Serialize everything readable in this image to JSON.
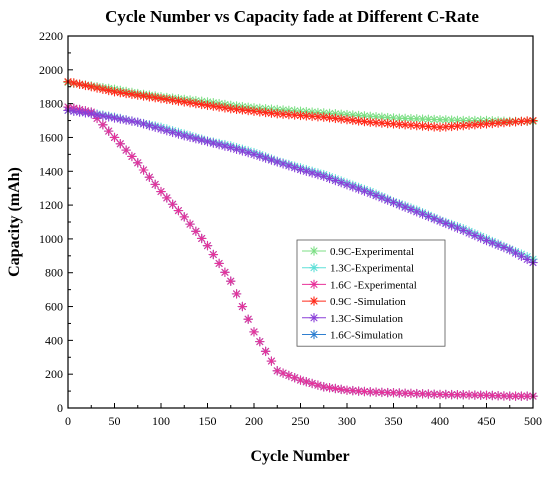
{
  "chart_data": {
    "type": "scatter",
    "title": "Cycle Number vs Capacity fade at Different C-Rate",
    "xlabel": "Cycle Number",
    "ylabel": "Capacity (mAh)",
    "xlim": [
      0,
      500
    ],
    "ylim": [
      0,
      2200
    ],
    "x_ticks": [
      0,
      50,
      100,
      150,
      200,
      250,
      300,
      350,
      400,
      450,
      500
    ],
    "y_ticks": [
      0,
      200,
      400,
      600,
      800,
      1000,
      1200,
      1400,
      1600,
      1800,
      2000,
      2200
    ],
    "marker": "asterisk",
    "grid": false,
    "legend_position": "center-right",
    "x": [
      0,
      25,
      50,
      75,
      100,
      125,
      150,
      175,
      200,
      225,
      250,
      275,
      300,
      325,
      350,
      375,
      400,
      425,
      450,
      475,
      500
    ],
    "series": [
      {
        "name": "0.9C-Experimental",
        "color": "#7ddf86",
        "plot_order": 2,
        "values": [
          1925,
          1905,
          1885,
          1860,
          1840,
          1825,
          1810,
          1790,
          1775,
          1765,
          1755,
          1745,
          1735,
          1725,
          1715,
          1710,
          1705,
          1700,
          1700,
          1695,
          1695
        ]
      },
      {
        "name": "1.3C-Experimental",
        "color": "#5fe0d8",
        "plot_order": 2,
        "values": [
          1760,
          1745,
          1720,
          1690,
          1660,
          1620,
          1580,
          1550,
          1510,
          1460,
          1420,
          1380,
          1330,
          1280,
          1220,
          1170,
          1110,
          1060,
          1000,
          940,
          880
        ]
      },
      {
        "name": "1.6C -Experimental",
        "color": "#e8339a",
        "plot_order": 3,
        "values": [
          1780,
          1750,
          1600,
          1450,
          1280,
          1130,
          960,
          750,
          450,
          220,
          165,
          125,
          105,
          95,
          90,
          85,
          80,
          78,
          75,
          70,
          70
        ]
      },
      {
        "name": "0.9C -Simulation",
        "color": "#ff2a1a",
        "plot_order": 4,
        "values": [
          1930,
          1900,
          1870,
          1850,
          1830,
          1810,
          1790,
          1770,
          1755,
          1740,
          1730,
          1720,
          1705,
          1690,
          1680,
          1670,
          1660,
          1670,
          1680,
          1690,
          1700
        ]
      },
      {
        "name": "1.3C-Simulation",
        "color": "#8a3fd8",
        "plot_order": 5,
        "values": [
          1760,
          1740,
          1715,
          1690,
          1650,
          1610,
          1575,
          1540,
          1500,
          1455,
          1410,
          1370,
          1320,
          1270,
          1215,
          1160,
          1105,
          1050,
          990,
          935,
          860
        ]
      },
      {
        "name": "1.6C-Simulation",
        "color": "#2f7fd0",
        "plot_order": 1,
        "values": [
          1780,
          1750,
          1600,
          1450,
          1280,
          1130,
          960,
          750,
          450,
          220,
          165,
          125,
          105,
          95,
          90,
          85,
          80,
          78,
          75,
          70,
          70
        ]
      }
    ]
  }
}
